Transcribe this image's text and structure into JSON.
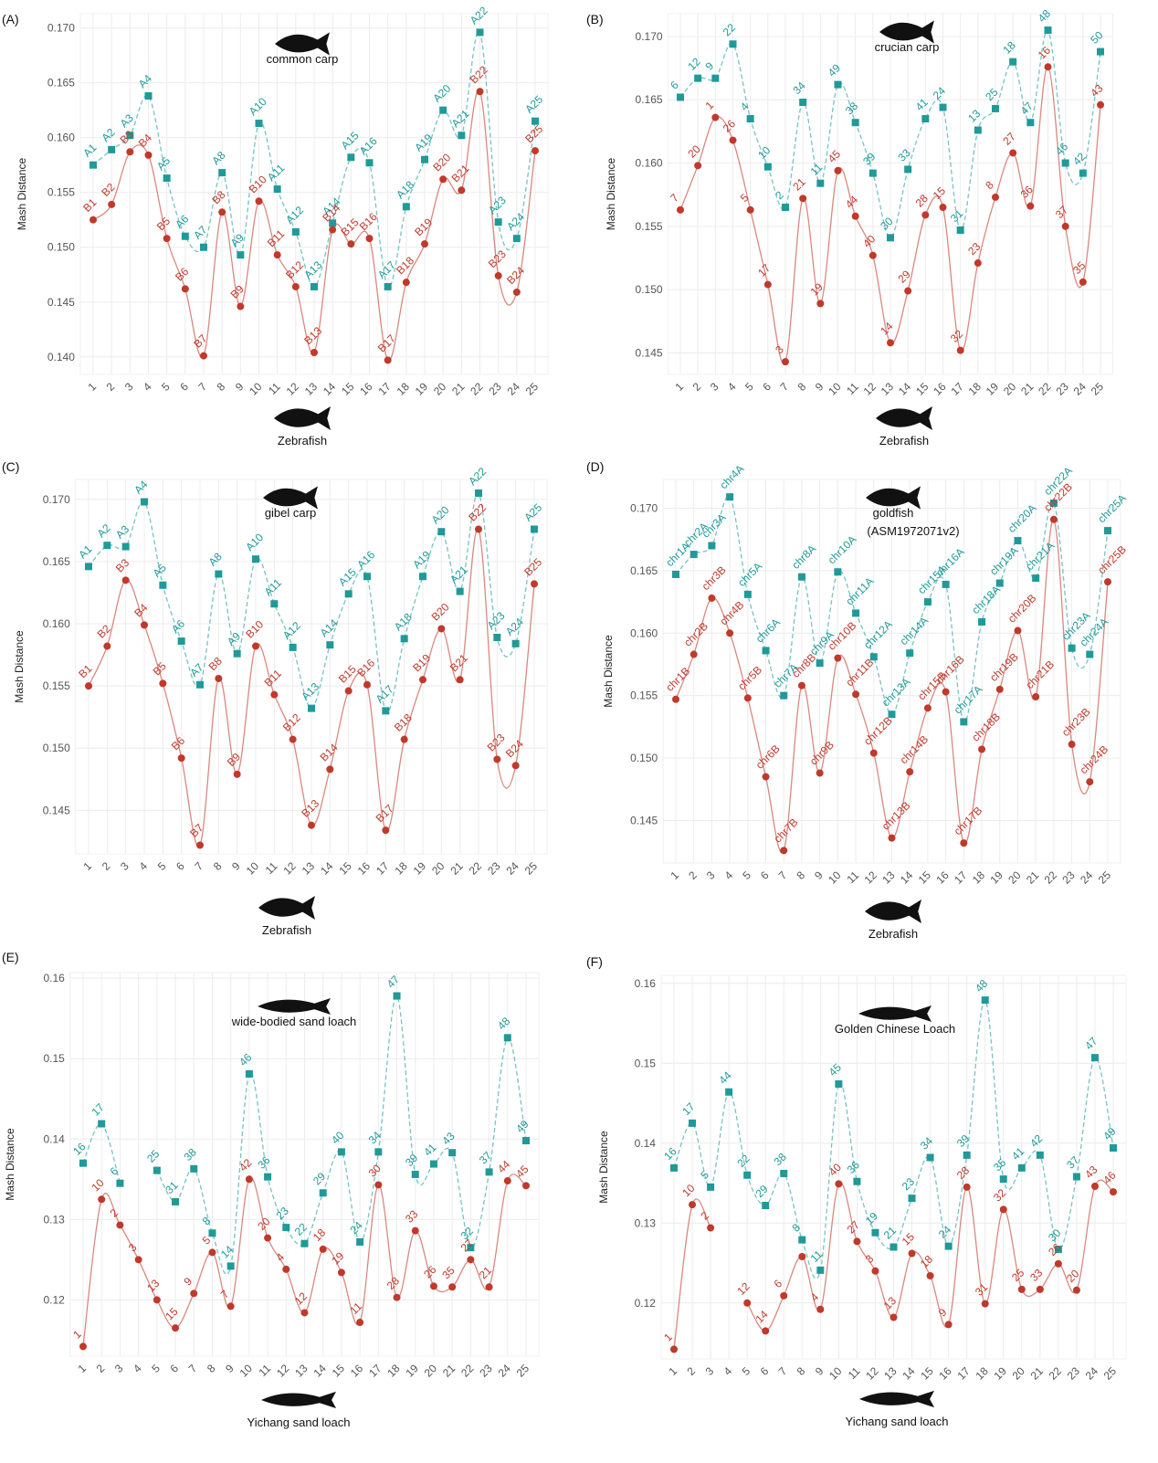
{
  "chart_data": [
    {
      "type": "line",
      "panel_label": "(A)",
      "annotation": [
        "common carp"
      ],
      "xlabel": "Zebrafish",
      "ylabel": "Mash Distance",
      "categories": [
        "1",
        "2",
        "3",
        "4",
        "5",
        "6",
        "7",
        "8",
        "9",
        "10",
        "11",
        "12",
        "13",
        "14",
        "15",
        "16",
        "17",
        "18",
        "19",
        "20",
        "21",
        "22",
        "23",
        "24",
        "25"
      ],
      "ylim": [
        0.1384,
        0.1713
      ],
      "yticks": [
        {
          "value": 0.14,
          "label": "0.140"
        },
        0.145,
        {
          "value": 0.15,
          "label": "0.150"
        },
        0.155,
        {
          "value": 0.16,
          "label": "0.160"
        },
        0.165,
        {
          "value": 0.17,
          "label": "0.170"
        }
      ],
      "grid": true,
      "series": [
        {
          "color": "#1f9a98",
          "marker": "square",
          "line": "dashed",
          "values": [
            0.1575,
            0.1589,
            0.1602,
            0.1638,
            0.1563,
            0.151,
            0.15,
            0.1568,
            0.1493,
            0.1613,
            0.1553,
            0.1514,
            0.1464,
            0.1522,
            0.1582,
            0.1577,
            0.1464,
            0.1537,
            0.158,
            0.1625,
            0.1602,
            0.1696,
            0.1523,
            0.1508,
            0.1615
          ],
          "labels": [
            "A1",
            "A2",
            "A3",
            "A4",
            "A5",
            "A6",
            "A7",
            "A8",
            "A9",
            "A10",
            "A11",
            "A12",
            "A13",
            "A14",
            "A15",
            "A16",
            "A17",
            "A18",
            "A19",
            "A20",
            "A21",
            "A22",
            "A23",
            "A24",
            "A25"
          ]
        },
        {
          "color": "#c0392b",
          "marker": "circle",
          "line": "solid",
          "values": [
            0.1525,
            0.1539,
            0.1587,
            0.1584,
            0.1508,
            0.1462,
            0.1401,
            0.1532,
            0.1446,
            0.1542,
            0.1493,
            0.1464,
            0.1404,
            0.1516,
            0.1503,
            0.1508,
            0.1397,
            0.1468,
            0.1503,
            0.1562,
            0.1552,
            0.1642,
            0.1474,
            0.1459,
            0.1588
          ],
          "labels": [
            "B1",
            "B2",
            "B3",
            "B4",
            "B5",
            "B6",
            "B7",
            "B8",
            "B9",
            "B10",
            "B11",
            "B12",
            "B13",
            "B14",
            "B15",
            "B16",
            "B17",
            "B18",
            "B19",
            "B20",
            "B21",
            "B22",
            "B23",
            "B24",
            "B25"
          ]
        }
      ]
    },
    {
      "type": "line",
      "panel_label": "(B)",
      "annotation": [
        "crucian carp"
      ],
      "xlabel": "Zebrafish",
      "ylabel": "Mash Distance",
      "categories": [
        "1",
        "2",
        "3",
        "4",
        "5",
        "6",
        "7",
        "8",
        "9",
        "10",
        "11",
        "12",
        "13",
        "14",
        "15",
        "16",
        "17",
        "18",
        "19",
        "20",
        "21",
        "22",
        "23",
        "24",
        "25"
      ],
      "ylim": [
        0.1433,
        0.1718
      ],
      "yticks": [
        0.145,
        {
          "value": 0.15,
          "label": "0.150"
        },
        0.155,
        {
          "value": 0.16,
          "label": "0.160"
        },
        0.165,
        {
          "value": 0.17,
          "label": "0.170"
        }
      ],
      "grid": true,
      "series": [
        {
          "color": "#1f9a98",
          "marker": "square",
          "line": "dashed",
          "values": [
            0.1652,
            0.1667,
            0.1667,
            0.1694,
            0.1635,
            0.1597,
            0.1565,
            0.1648,
            0.1584,
            0.1662,
            0.1632,
            0.1592,
            0.1541,
            0.1595,
            0.1635,
            0.1644,
            0.1547,
            0.1626,
            0.1643,
            0.168,
            0.1632,
            0.1705,
            0.16,
            0.1592,
            0.1688
          ],
          "labels": [
            "6",
            "12",
            "9",
            "22",
            "4",
            "10",
            "2",
            "34",
            "11",
            "49",
            "38",
            "39",
            "30",
            "33",
            "41",
            "24",
            "31",
            "13",
            "25",
            "18",
            "47",
            "48",
            "46",
            "42",
            "50"
          ]
        },
        {
          "color": "#c0392b",
          "marker": "circle",
          "line": "solid",
          "values": [
            0.1563,
            0.1598,
            0.1636,
            0.1618,
            0.1563,
            0.1504,
            0.1443,
            0.1572,
            0.1489,
            0.1594,
            0.1558,
            0.1527,
            0.1458,
            0.1499,
            0.1559,
            0.1565,
            0.1452,
            0.1521,
            0.1573,
            0.1608,
            0.1566,
            0.1676,
            0.155,
            0.1506,
            0.1646
          ],
          "labels": [
            "7",
            "20",
            "1",
            "26",
            "5",
            "17",
            "3",
            "21",
            "19",
            "45",
            "44",
            "40",
            "14",
            "29",
            "28",
            "15",
            "32",
            "23",
            "8",
            "27",
            "36",
            "16",
            "37",
            "35",
            "43"
          ]
        }
      ]
    },
    {
      "type": "line",
      "panel_label": "(C)",
      "annotation": [
        "gibel carp"
      ],
      "xlabel": "Zebrafish",
      "ylabel": "Mash Distance",
      "categories": [
        "1",
        "2",
        "3",
        "4",
        "5",
        "6",
        "7",
        "8",
        "9",
        "10",
        "11",
        "12",
        "13",
        "14",
        "15",
        "16",
        "17",
        "18",
        "19",
        "20",
        "21",
        "22",
        "23",
        "24",
        "25"
      ],
      "ylim": [
        0.1415,
        0.1716
      ],
      "yticks": [
        0.145,
        {
          "value": 0.15,
          "label": "0.150"
        },
        0.155,
        {
          "value": 0.16,
          "label": "0.160"
        },
        0.165,
        {
          "value": 0.17,
          "label": "0.170"
        }
      ],
      "grid": true,
      "series": [
        {
          "color": "#1f9a98",
          "marker": "square",
          "line": "dashed",
          "values": [
            0.1646,
            0.1663,
            0.1662,
            0.1698,
            0.1631,
            0.1586,
            0.1551,
            0.164,
            0.1576,
            0.1652,
            0.1616,
            0.1581,
            0.1532,
            0.1583,
            0.1624,
            0.1638,
            0.153,
            0.1588,
            0.1638,
            0.1674,
            0.1626,
            0.1705,
            0.1589,
            0.1584,
            0.1676
          ],
          "labels": [
            "A1",
            "A2",
            "A3",
            "A4",
            "A5",
            "A6",
            "A7",
            "A8",
            "A9",
            "A10",
            "A11",
            "A12",
            "A13",
            "A14",
            "A15",
            "A16",
            "A17",
            "A18",
            "A19",
            "A20",
            "A21",
            "A22",
            "A23",
            "A24",
            "A25"
          ]
        },
        {
          "color": "#c0392b",
          "marker": "circle",
          "line": "solid",
          "values": [
            0.155,
            0.1582,
            0.1635,
            0.1599,
            0.1552,
            0.1492,
            0.1422,
            0.1556,
            0.1479,
            0.1582,
            0.1543,
            0.1507,
            0.1438,
            0.1483,
            0.1546,
            0.1551,
            0.1434,
            0.1507,
            0.1555,
            0.1596,
            0.1555,
            0.1676,
            0.1491,
            0.1486,
            0.1632
          ],
          "labels": [
            "B1",
            "B2",
            "B3",
            "B4",
            "B5",
            "B6",
            "B7",
            "B8",
            "B9",
            "B10",
            "B11",
            "B12",
            "B13",
            "B14",
            "B15",
            "B16",
            "B17",
            "B18",
            "B19",
            "B20",
            "B21",
            "B22",
            "B23",
            "B24",
            "B25"
          ]
        }
      ]
    },
    {
      "type": "line",
      "panel_label": "(D)",
      "annotation": [
        "goldfish",
        "(ASM1972071v2)"
      ],
      "xlabel": "Zebrafish",
      "ylabel": "Mash Distance",
      "categories": [
        "1",
        "2",
        "3",
        "4",
        "5",
        "6",
        "7",
        "8",
        "9",
        "10",
        "11",
        "12",
        "13",
        "14",
        "15",
        "16",
        "17",
        "18",
        "19",
        "20",
        "21",
        "22",
        "23",
        "24",
        "25"
      ],
      "ylim": [
        0.1416,
        0.1723
      ],
      "yticks": [
        0.145,
        {
          "value": 0.15,
          "label": "0.150"
        },
        0.155,
        {
          "value": 0.16,
          "label": "0.160"
        },
        0.165,
        {
          "value": 0.17,
          "label": "0.170"
        }
      ],
      "grid": true,
      "series": [
        {
          "color": "#1f9a98",
          "marker": "square",
          "line": "dashed",
          "values": [
            0.1647,
            0.1663,
            0.167,
            0.1709,
            0.1631,
            0.1586,
            0.155,
            0.1645,
            0.1576,
            0.1649,
            0.1616,
            0.1581,
            0.1535,
            0.1584,
            0.1625,
            0.1639,
            0.1529,
            0.1609,
            0.164,
            0.1674,
            0.1644,
            0.1704,
            0.1588,
            0.1583,
            0.1682
          ],
          "labels": [
            "chr1A",
            "chr2A",
            "chr3A",
            "chr4A",
            "chr5A",
            "chr6A",
            "chr7A",
            "chr8A",
            "chr9A",
            "chr10A",
            "chr11A",
            "chr12A",
            "chr13A",
            "chr14A",
            "chr15A",
            "chr16A",
            "chr17A",
            "chr18A",
            "chr19A",
            "chr20A",
            "chr21A",
            "chr22A",
            "chr23A",
            "chr24A",
            "chr25A"
          ]
        },
        {
          "color": "#c0392b",
          "marker": "circle",
          "line": "solid",
          "values": [
            0.1547,
            0.1583,
            0.1628,
            0.16,
            0.1548,
            0.1485,
            0.1426,
            0.1558,
            0.1488,
            0.158,
            0.1551,
            0.1504,
            0.1436,
            0.1489,
            0.154,
            0.1553,
            0.1432,
            0.1507,
            0.1555,
            0.1602,
            0.1549,
            0.1691,
            0.1511,
            0.1481,
            0.1641
          ],
          "labels": [
            "chr1B",
            "chr2B",
            "chr3B",
            "chr4B",
            "chr5B",
            "chr6B",
            "chr7B",
            "chr8B",
            "chr9B",
            "chr10B",
            "chr11B",
            "chr12B",
            "chr13B",
            "chr14B",
            "chr15B",
            "chr16B",
            "chr17B",
            "chr18B",
            "chr19B",
            "chr20B",
            "chr21B",
            "chr22B",
            "chr23B",
            "chr24B",
            "chr25B"
          ]
        }
      ]
    },
    {
      "type": "line",
      "panel_label": "(E)",
      "annotation": [
        "wide-bodied sand loach"
      ],
      "xlabel": "Yichang sand loach",
      "ylabel": "Mash Distance",
      "categories": [
        "1",
        "2",
        "3",
        "4",
        "5",
        "6",
        "7",
        "8",
        "9",
        "10",
        "11",
        "12",
        "13",
        "14",
        "15",
        "16",
        "17",
        "18",
        "19",
        "20",
        "21",
        "22",
        "23",
        "24",
        "25"
      ],
      "ylim": [
        0.113,
        0.1607
      ],
      "yticks": [
        0.12,
        0.13,
        0.14,
        0.15,
        0.16
      ],
      "grid": true,
      "series": [
        {
          "color": "#1f9a98",
          "marker": "square",
          "line": "dashed",
          "values": [
            0.137,
            0.1419,
            0.1345,
            null,
            0.1361,
            0.1322,
            0.1363,
            0.1283,
            0.1242,
            0.1481,
            0.1353,
            0.129,
            0.127,
            0.1333,
            0.1384,
            0.1272,
            0.1384,
            0.1578,
            0.1356,
            0.1369,
            0.1383,
            0.1265,
            0.1359,
            0.1526,
            0.1398
          ],
          "labels": [
            "16",
            "17",
            "6",
            null,
            "25",
            "31",
            "38",
            "8",
            "14",
            "46",
            "36",
            "23",
            "22",
            "29",
            "40",
            "24",
            "34",
            "47",
            "39",
            "41",
            "43",
            "32",
            "37",
            "48",
            "49"
          ]
        },
        {
          "color": "#c0392b",
          "marker": "circle",
          "line": "solid",
          "values": [
            0.1142,
            0.1325,
            0.1293,
            0.125,
            0.12,
            0.1165,
            0.1208,
            0.1259,
            0.1192,
            0.135,
            0.1277,
            0.1238,
            0.1184,
            0.1263,
            0.1234,
            0.1172,
            0.1343,
            0.1203,
            0.1286,
            0.1217,
            0.1216,
            0.125,
            0.1216,
            0.1348,
            0.1342
          ],
          "labels": [
            "1",
            "10",
            "2",
            "3",
            "13",
            "15",
            "9",
            "5",
            "7",
            "42",
            "20",
            "4",
            "12",
            "18",
            "19",
            "11",
            "30",
            "28",
            "33",
            "26",
            "35",
            "27",
            "21",
            "44",
            "45"
          ]
        }
      ]
    },
    {
      "type": "line",
      "panel_label": "(F)",
      "annotation": [
        "Golden Chinese Loach"
      ],
      "xlabel": "Yichang sand loach",
      "ylabel": "Mash Distance",
      "categories": [
        "1",
        "2",
        "3",
        "4",
        "5",
        "6",
        "7",
        "8",
        "9",
        "10",
        "11",
        "12",
        "13",
        "14",
        "15",
        "16",
        "17",
        "18",
        "19",
        "20",
        "21",
        "22",
        "23",
        "24",
        "25"
      ],
      "ylim": [
        0.113,
        0.161
      ],
      "yticks": [
        0.12,
        0.13,
        0.14,
        0.15,
        0.16
      ],
      "grid": true,
      "series": [
        {
          "color": "#1f9a98",
          "marker": "square",
          "line": "dashed",
          "values": [
            0.1369,
            0.1425,
            0.1345,
            0.1464,
            0.136,
            0.1322,
            0.1362,
            0.1279,
            0.1241,
            0.1474,
            0.1352,
            0.1288,
            0.127,
            0.1331,
            0.1382,
            0.1271,
            0.1385,
            0.1579,
            0.1355,
            0.1369,
            0.1385,
            0.1267,
            0.1358,
            0.1507,
            0.1394
          ],
          "labels": [
            "16",
            "17",
            "5",
            "44",
            "22",
            "29",
            "38",
            "8",
            "11",
            "45",
            "36",
            "19",
            "21",
            "23",
            "34",
            "24",
            "39",
            "48",
            "35",
            "41",
            "42",
            "30",
            "37",
            "47",
            "49"
          ]
        },
        {
          "color": "#c0392b",
          "marker": "circle",
          "line": "solid",
          "values": [
            0.1142,
            0.1323,
            0.1294,
            null,
            0.12,
            0.1165,
            0.1209,
            0.1258,
            0.1192,
            0.1349,
            0.1277,
            0.124,
            0.1182,
            0.1262,
            0.1234,
            0.1173,
            0.1345,
            0.1199,
            0.1317,
            0.1217,
            0.1217,
            0.1249,
            0.1216,
            0.1346,
            0.1339
          ],
          "labels": [
            "1",
            "10",
            "2",
            null,
            "12",
            "14",
            "6",
            null,
            "4",
            "40",
            "27",
            "3",
            "13",
            "15",
            "18",
            "9",
            "28",
            "31",
            "32",
            "25",
            "33",
            "26",
            "20",
            "43",
            "46"
          ]
        }
      ]
    }
  ]
}
